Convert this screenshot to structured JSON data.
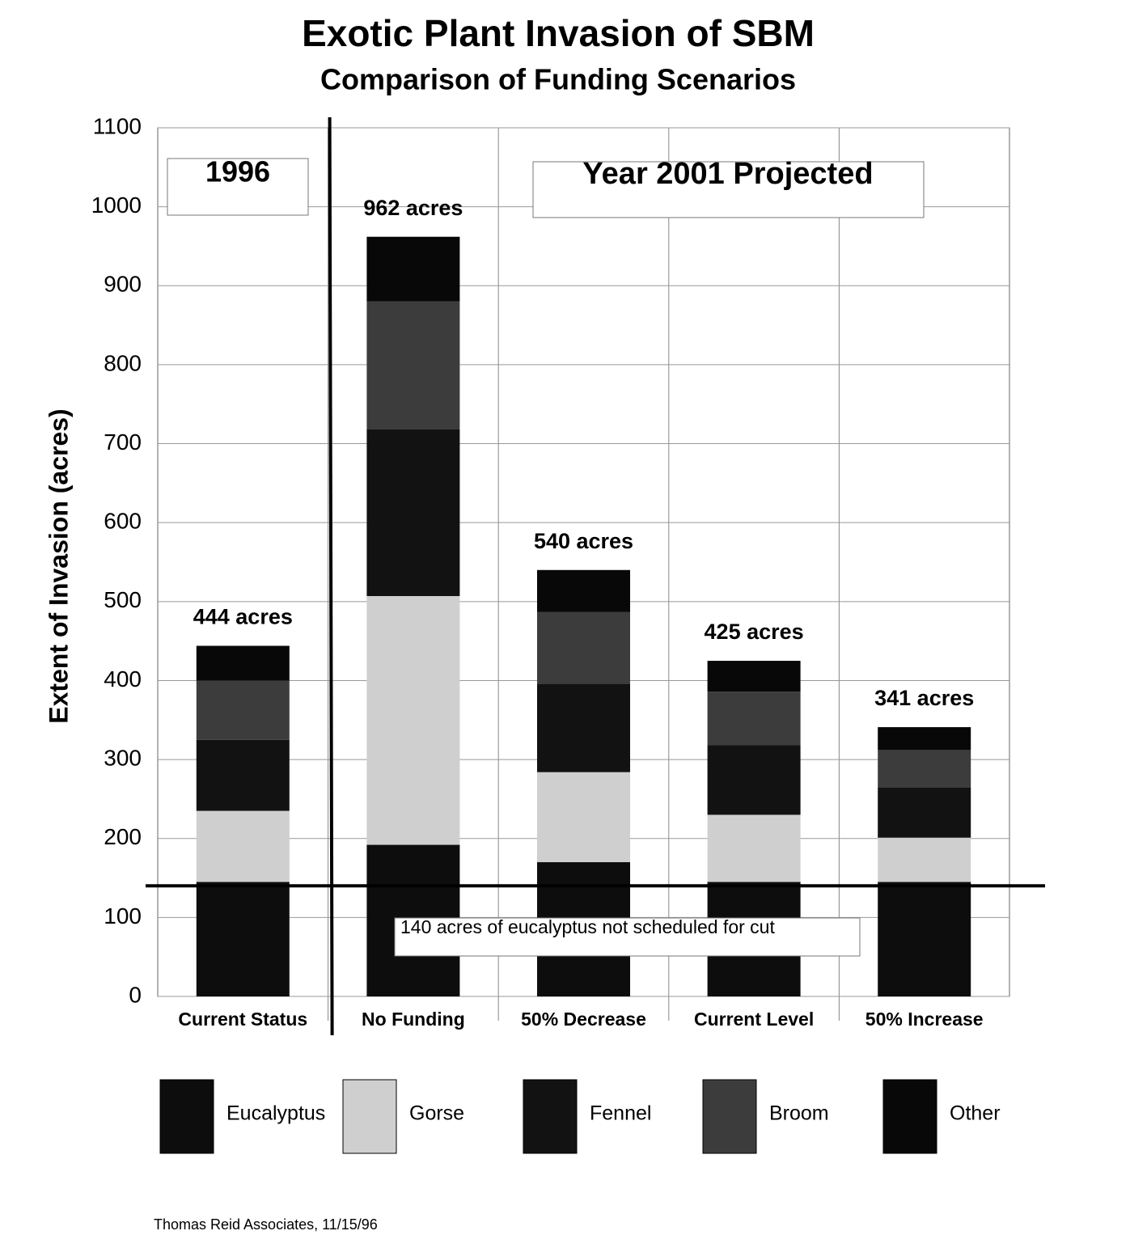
{
  "chart_data": {
    "type": "stacked_bar",
    "title": "Exotic Plant Invasion of SBM",
    "subtitle": "Comparison of Funding Scenarios",
    "y_label": "Extent of Invasion (acres)",
    "categories": [
      "Current Status",
      "No Funding",
      "50% Decrease",
      "Current Level",
      "50% Increase"
    ],
    "series": [
      {
        "name": "Eucalyptus",
        "color": "#0d0d0d",
        "values": [
          145,
          192,
          170,
          145,
          145
        ]
      },
      {
        "name": "Gorse",
        "color": "#cfcfcf",
        "values": [
          90,
          315,
          114,
          85,
          56
        ]
      },
      {
        "name": "Fennel",
        "color": "#121212",
        "values": [
          90,
          211,
          112,
          88,
          64
        ]
      },
      {
        "name": "Broom",
        "color": "#3c3c3c",
        "values": [
          75,
          162,
          91,
          68,
          47
        ]
      },
      {
        "name": "Other",
        "color": "#080808",
        "values": [
          44,
          82,
          53,
          39,
          29
        ]
      }
    ],
    "totals": [
      444,
      962,
      540,
      425,
      341
    ],
    "total_labels": [
      "444 acres",
      "962 acres",
      "540 acres",
      "425 acres",
      "341 acres"
    ],
    "ylim": [
      0,
      1100
    ],
    "yticks": [
      0,
      100,
      200,
      300,
      400,
      500,
      600,
      700,
      800,
      900,
      1000,
      1100
    ],
    "grid": true,
    "annotations": [
      "1996",
      "Year 2001 Projected"
    ],
    "reference_line": {
      "value": 140,
      "label": "140 acres of eucalyptus not scheduled for cut"
    },
    "footer": "Thomas Reid Associates, 11/15/96"
  }
}
